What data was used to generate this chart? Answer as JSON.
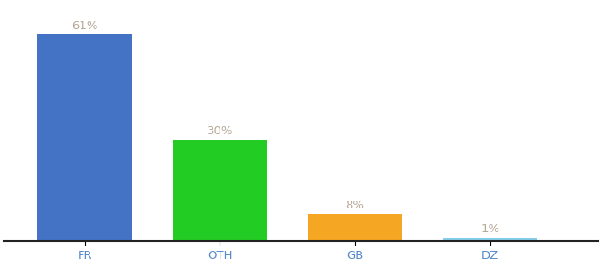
{
  "categories": [
    "FR",
    "OTH",
    "GB",
    "DZ"
  ],
  "values": [
    61,
    30,
    8,
    1
  ],
  "bar_colors": [
    "#4472c4",
    "#22cc22",
    "#f5a623",
    "#87ceeb"
  ],
  "label_color": "#b8a898",
  "label_fontsize": 9.5,
  "tick_fontsize": 9.5,
  "tick_color": "#5588cc",
  "ylim": [
    0,
    70
  ],
  "bar_width": 0.7,
  "background_color": "#ffffff"
}
